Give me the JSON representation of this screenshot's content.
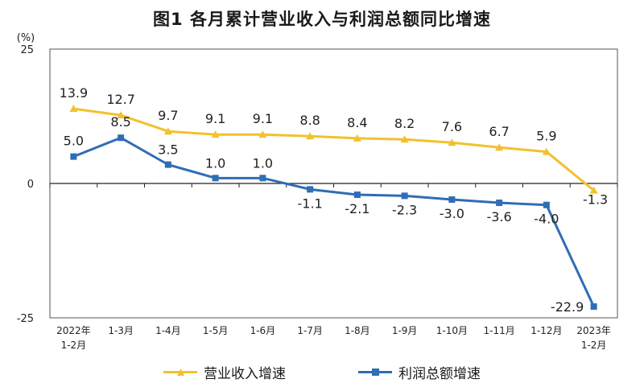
{
  "chart_data": {
    "type": "line",
    "title": "图1  各月累计营业收入与利润总额同比增速",
    "ylabel": "(%)",
    "ylim": [
      -25,
      25
    ],
    "yticks": [
      25,
      0,
      -25
    ],
    "grid": false,
    "legend_position": "bottom",
    "categories": [
      [
        "2022年",
        "1-2月"
      ],
      [
        "1-3月"
      ],
      [
        "1-4月"
      ],
      [
        "1-5月"
      ],
      [
        "1-6月"
      ],
      [
        "1-7月"
      ],
      [
        "1-8月"
      ],
      [
        "1-9月"
      ],
      [
        "1-10月"
      ],
      [
        "1-11月"
      ],
      [
        "1-12月"
      ],
      [
        "2023年",
        "1-2月"
      ]
    ],
    "series": [
      {
        "name": "营业收入增速",
        "color": "#f2c12e",
        "marker": "triangle",
        "values": [
          13.9,
          12.7,
          9.7,
          9.1,
          9.1,
          8.8,
          8.4,
          8.2,
          7.6,
          6.7,
          5.9,
          -1.3
        ],
        "labels": [
          "13.9",
          "12.7",
          "9.7",
          "9.1",
          "9.1",
          "8.8",
          "8.4",
          "8.2",
          "7.6",
          "6.7",
          "5.9",
          "-1.3"
        ]
      },
      {
        "name": "利润总额增速",
        "color": "#2f6db5",
        "marker": "square",
        "values": [
          5.0,
          8.5,
          3.5,
          1.0,
          1.0,
          -1.1,
          -2.1,
          -2.3,
          -3.0,
          -3.6,
          -4.0,
          -22.9
        ],
        "labels": [
          "5.0",
          "8.5",
          "3.5",
          "1.0",
          "1.0",
          "-1.1",
          "-2.1",
          "-2.3",
          "-3.0",
          "-3.6",
          "-4.0",
          "-22.9"
        ]
      }
    ]
  }
}
